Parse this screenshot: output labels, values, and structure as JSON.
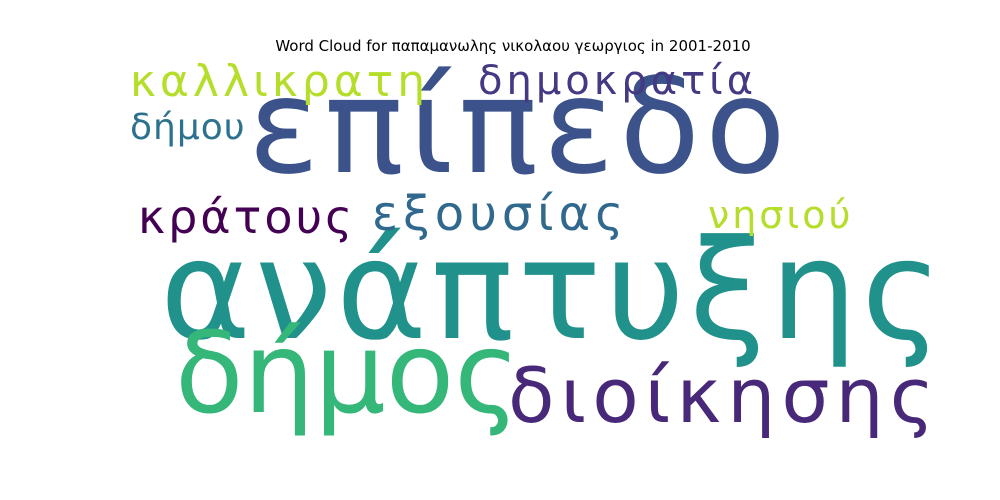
{
  "chart_data": {
    "type": "wordcloud",
    "title": "Word Cloud for παπαμανωλης νικολαου γεωργιος in 2001-2010",
    "words": [
      {
        "text": "ανάπτυξης",
        "weight": 100,
        "color": "#21918c"
      },
      {
        "text": "επίπεδο",
        "weight": 88,
        "color": "#3b528b"
      },
      {
        "text": "δήμος",
        "weight": 65,
        "color": "#35b779"
      },
      {
        "text": "διοίκησης",
        "weight": 45,
        "color": "#482878"
      },
      {
        "text": "εξουσίας",
        "weight": 28,
        "color": "#31688e"
      },
      {
        "text": "κράτους",
        "weight": 26,
        "color": "#440154"
      },
      {
        "text": "νησιού",
        "weight": 24,
        "color": "#b5de2b"
      },
      {
        "text": "δημοκρατία",
        "weight": 24,
        "color": "#443983"
      },
      {
        "text": "καλλικρατη",
        "weight": 24,
        "color": "#b5de2b"
      },
      {
        "text": "δήμου",
        "weight": 22,
        "color": "#2c728e"
      }
    ]
  }
}
